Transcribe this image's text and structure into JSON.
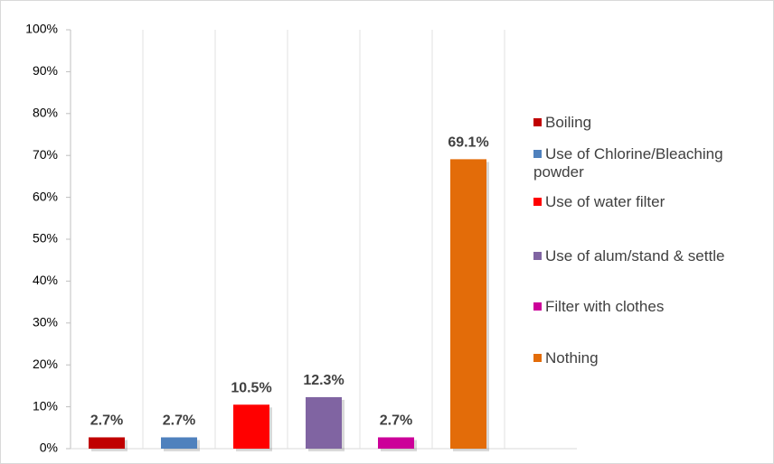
{
  "chart_data": {
    "type": "bar",
    "series": [
      {
        "name": "Boiling",
        "color": "#c00000",
        "values": [
          2.7
        ],
        "value_labels": [
          "2.7%"
        ]
      },
      {
        "name": "Use of Chlorine/Bleaching powder",
        "color": "#4f81bd",
        "values": [
          2.7
        ],
        "value_labels": [
          "2.7%"
        ]
      },
      {
        "name": "Use of water filter",
        "color": "#ff0000",
        "values": [
          10.5
        ],
        "value_labels": [
          "10.5%"
        ]
      },
      {
        "name": "Use of alum/stand & settle",
        "color": "#8064a2",
        "values": [
          12.3
        ],
        "value_labels": [
          "12.3%"
        ]
      },
      {
        "name": "Filter with clothes",
        "color": "#cc0099",
        "values": [
          2.7
        ],
        "value_labels": [
          "2.7%"
        ]
      },
      {
        "name": "Nothing",
        "color": "#e36c09",
        "values": [
          69.1
        ],
        "value_labels": [
          "69.1%"
        ]
      }
    ],
    "ylim": [
      0,
      100
    ],
    "yticks": [
      {
        "value": 0,
        "label": "0%"
      },
      {
        "value": 10,
        "label": "10%"
      },
      {
        "value": 20,
        "label": "20%"
      },
      {
        "value": 30,
        "label": "30%"
      },
      {
        "value": 40,
        "label": "40%"
      },
      {
        "value": 50,
        "label": "50%"
      },
      {
        "value": 60,
        "label": "60%"
      },
      {
        "value": 70,
        "label": "70%"
      },
      {
        "value": 80,
        "label": "80%"
      },
      {
        "value": 90,
        "label": "90%"
      },
      {
        "value": 100,
        "label": "100%"
      }
    ],
    "legend": "right"
  }
}
